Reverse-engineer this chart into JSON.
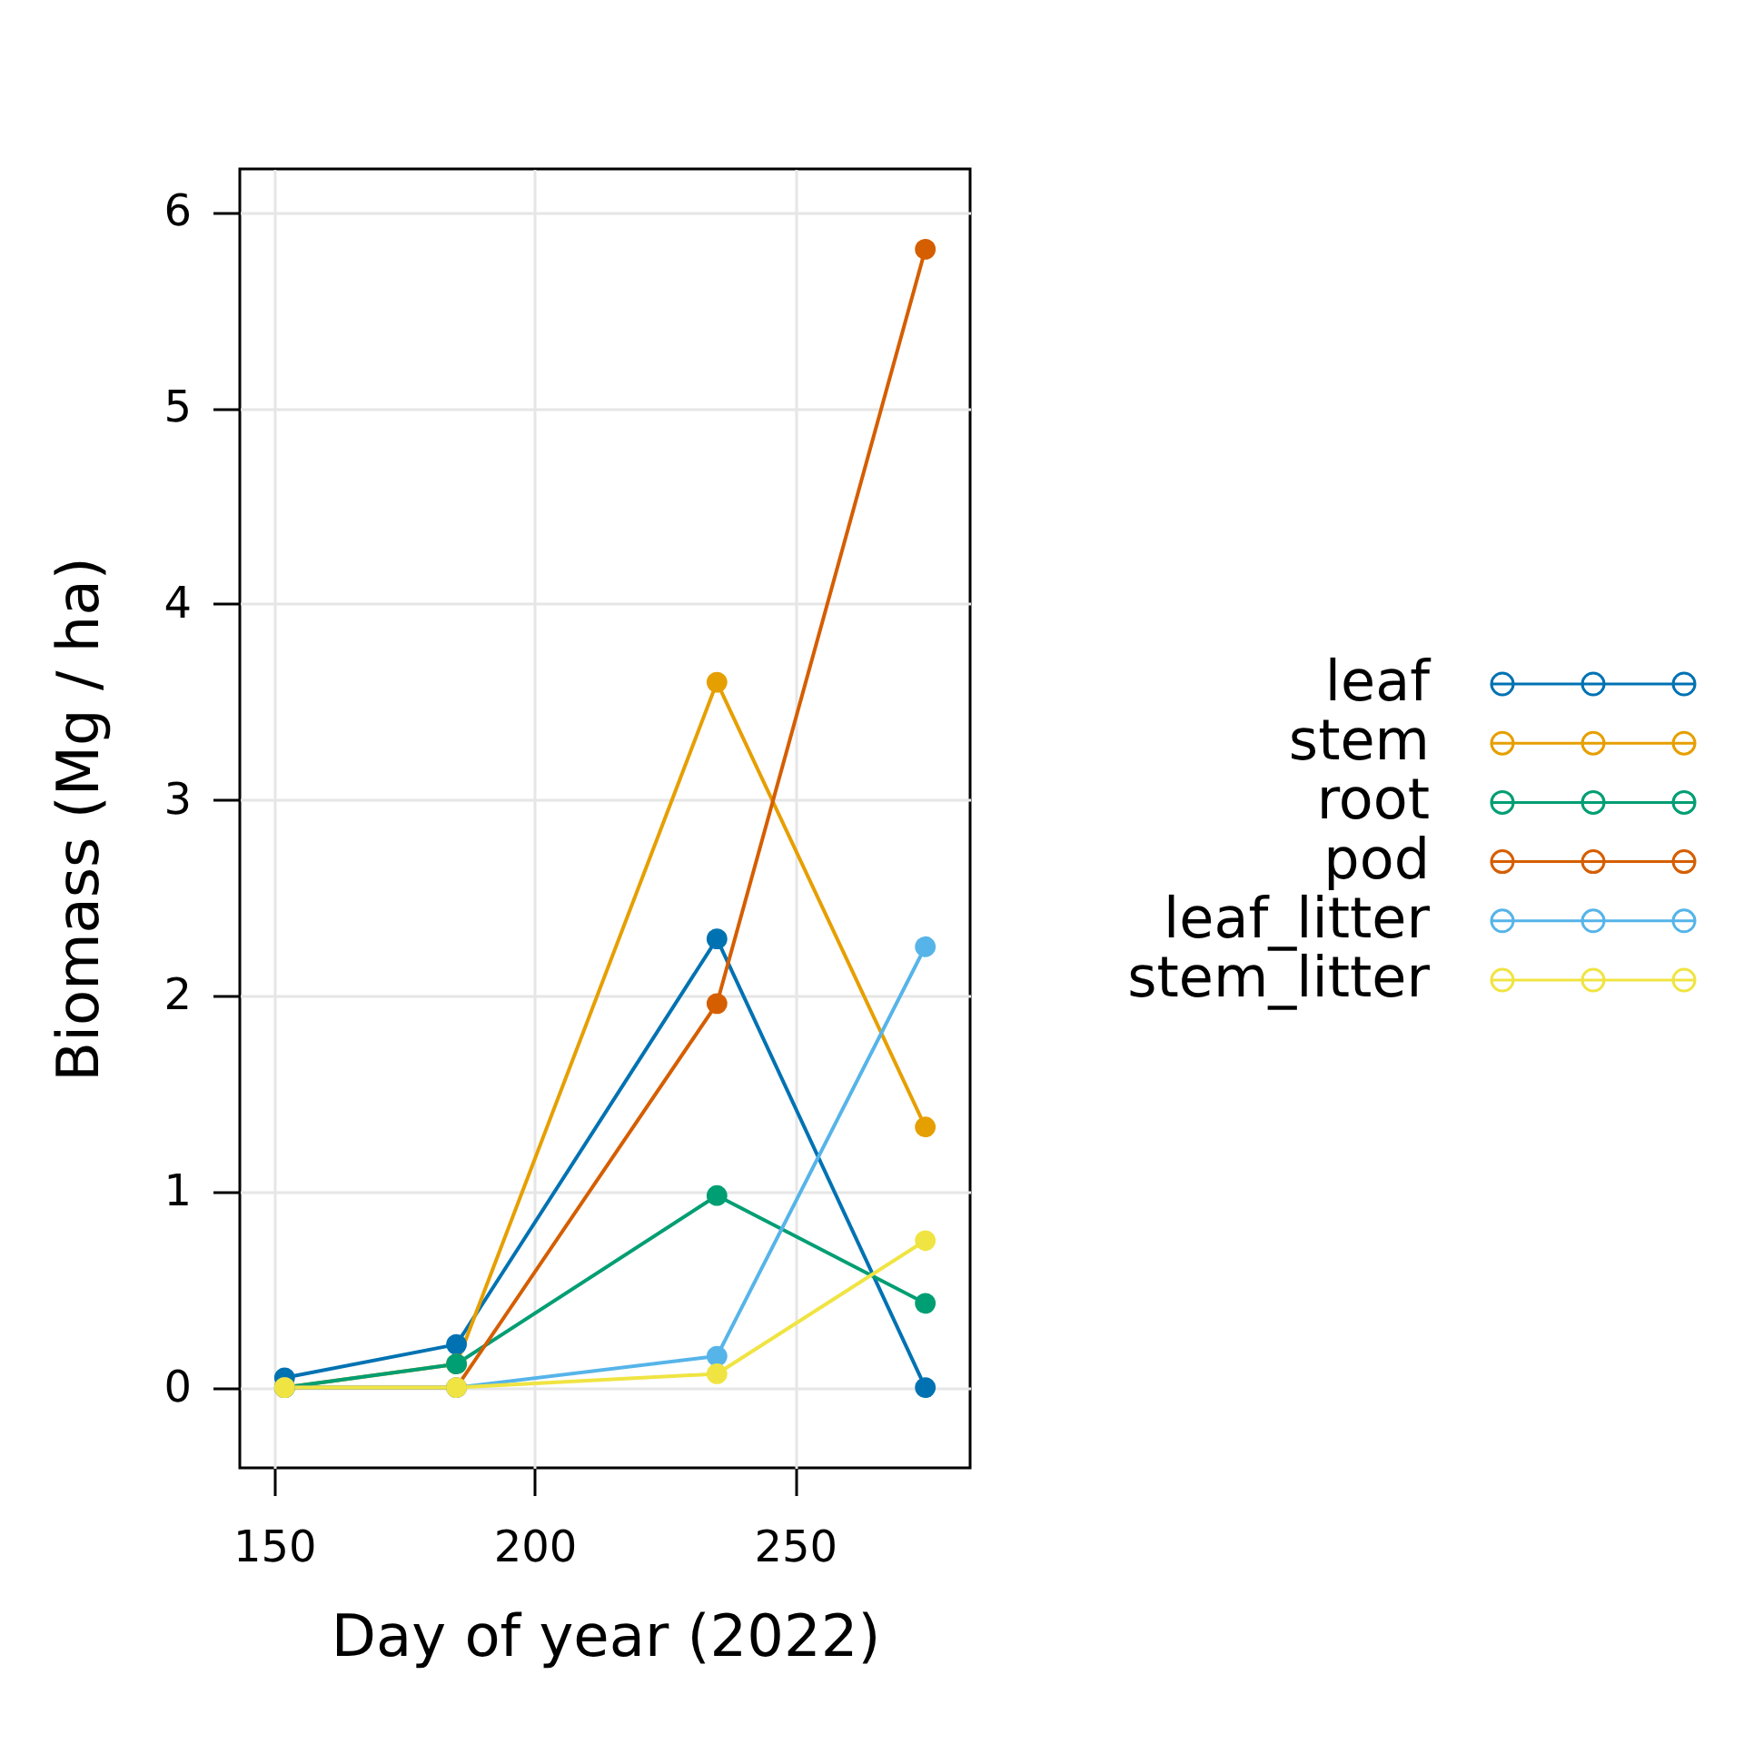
{
  "chart_data": {
    "type": "line",
    "xlabel": "Day of year (2022)",
    "ylabel": "Biomass (Mg / ha)",
    "x": [
      152,
      185,
      235,
      275
    ],
    "series": [
      {
        "name": "leaf",
        "color": "#0072b2",
        "values": [
          0.05,
          0.22,
          2.29,
          0
        ]
      },
      {
        "name": "stem",
        "color": "#e69f00",
        "values": [
          0,
          0.12,
          3.6,
          1.33
        ]
      },
      {
        "name": "root",
        "color": "#009e73",
        "values": [
          0,
          0.12,
          0.98,
          0.43
        ]
      },
      {
        "name": "pod",
        "color": "#d55e00",
        "values": [
          0,
          0,
          1.96,
          5.81
        ]
      },
      {
        "name": "leaf_litter",
        "color": "#56b4e9",
        "values": [
          0,
          0,
          0.16,
          2.25
        ]
      },
      {
        "name": "stem_litter",
        "color": "#f0e442",
        "values": [
          0,
          0,
          0.07,
          0.75
        ]
      }
    ],
    "xlim": [
      143.4,
      283.6
    ],
    "xticks": [
      150,
      200,
      250
    ],
    "ylim": [
      -0.41,
      6.22
    ],
    "yticks": [
      0,
      1,
      2,
      3,
      4,
      5,
      6
    ],
    "grid": true,
    "legend": "right",
    "marker": "circle",
    "line_style": "solid"
  }
}
